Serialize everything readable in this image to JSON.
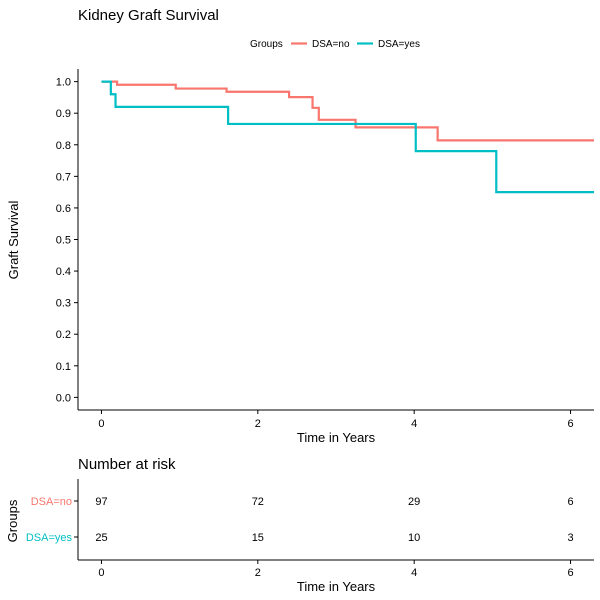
{
  "chart_data": [
    {
      "type": "line",
      "step": true,
      "title": "Kidney Graft Survival",
      "xlabel": "Time in Years",
      "ylabel": "Graft Survival",
      "xlim": [
        -0.3,
        6.3
      ],
      "ylim": [
        -0.04,
        1.04
      ],
      "grid": false,
      "legend": {
        "title": "Groups",
        "placement": "top"
      },
      "x_ticks": [
        0,
        2,
        4,
        6
      ],
      "x_tick_labels": [
        "0",
        "2",
        "4",
        "6"
      ],
      "y_ticks": [
        0.0,
        0.1,
        0.2,
        0.3,
        0.4,
        0.5,
        0.6,
        0.7,
        0.8,
        0.9,
        1.0
      ],
      "y_tick_labels": [
        "0.0",
        "0.1",
        "0.2",
        "0.3",
        "0.4",
        "0.5",
        "0.6",
        "0.7",
        "0.8",
        "0.9",
        "1.0"
      ],
      "series": [
        {
          "name": "DSA=no",
          "color": "#F8766D",
          "x": [
            0.0,
            0.2,
            0.95,
            1.6,
            2.4,
            2.7,
            2.78,
            3.25,
            4.3,
            6.3
          ],
          "y": [
            1.0,
            0.99,
            0.978,
            0.968,
            0.951,
            0.917,
            0.879,
            0.855,
            0.814,
            0.814
          ]
        },
        {
          "name": "DSA=yes",
          "color": "#00BFC4",
          "x": [
            0.0,
            0.12,
            0.18,
            1.62,
            4.02,
            5.05,
            6.3
          ],
          "y": [
            1.0,
            0.96,
            0.92,
            0.866,
            0.78,
            0.65,
            0.65
          ]
        }
      ]
    },
    {
      "type": "table",
      "title": "Number at risk",
      "xlabel": "Time in Years",
      "ylabel": "Groups",
      "xlim": [
        -0.3,
        6.3
      ],
      "x_ticks": [
        0,
        2,
        4,
        6
      ],
      "x_tick_labels": [
        "0",
        "2",
        "4",
        "6"
      ],
      "rows": [
        {
          "name": "DSA=no",
          "color": "#F8766D",
          "values": [
            "97",
            "72",
            "29",
            "6"
          ]
        },
        {
          "name": "DSA=yes",
          "color": "#00BFC4",
          "values": [
            "25",
            "15",
            "10",
            "3"
          ]
        }
      ]
    }
  ]
}
